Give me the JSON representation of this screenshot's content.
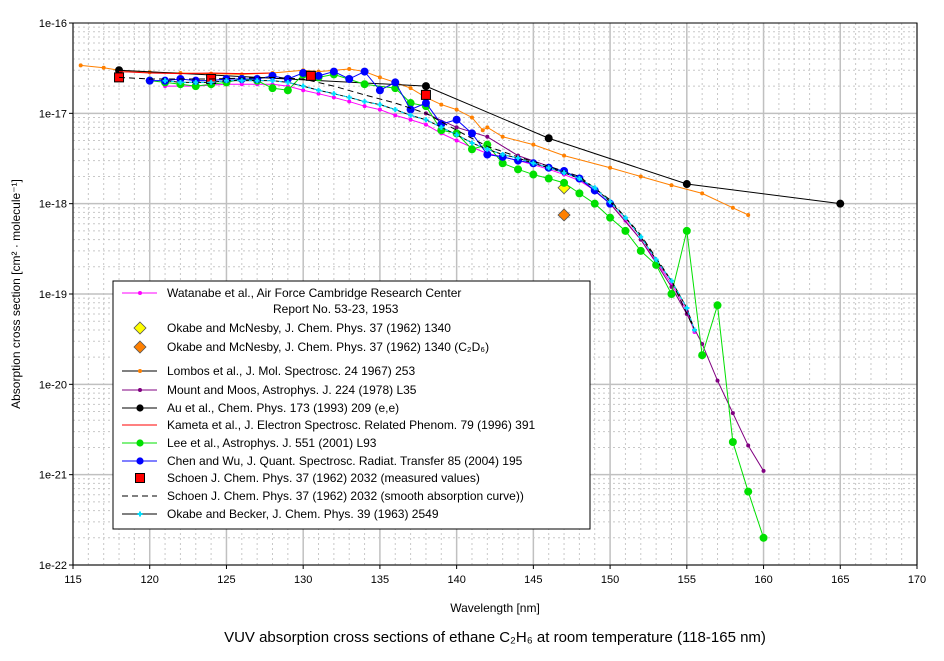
{
  "chart_data": {
    "type": "line",
    "title": "VUV absorption cross sections of ethane C₂H₆ at room temperature (118-165 nm)",
    "xlabel": "Wavelength [nm]",
    "ylabel": "Absorption cross section [cm² · molecule⁻¹]",
    "xlim": [
      115,
      170
    ],
    "ylim": [
      1e-22,
      1e-16
    ],
    "yscale": "log",
    "grid": true,
    "legend_placement": "lower-left",
    "x_ticks": [
      "115",
      "120",
      "125",
      "130",
      "135",
      "140",
      "145",
      "150",
      "155",
      "160",
      "165",
      "170"
    ],
    "y_ticks": [
      "1e-22",
      "1e-21",
      "1e-20",
      "1e-19",
      "1e-18",
      "1e-17",
      "1e-16"
    ],
    "series": [
      {
        "name": "Watanabe et al., Air Force Cambridge Research Center",
        "name2": "Report No. 53-23, 1953",
        "color": "#ff00ff",
        "marker": "dot",
        "line": "solid",
        "x": [
          121,
          122,
          123,
          124,
          125,
          126,
          127,
          128,
          129,
          130,
          131,
          132,
          133,
          134,
          135,
          136,
          137,
          138,
          139,
          140,
          141,
          142,
          143,
          144,
          145,
          146,
          147,
          148,
          149,
          150,
          151,
          152,
          153,
          154,
          155,
          155.5
        ],
        "y": [
          2e-17,
          2e-17,
          2e-17,
          2.05e-17,
          2.1e-17,
          2.1e-17,
          2.1e-17,
          2.1e-17,
          2e-17,
          1.8e-17,
          1.65e-17,
          1.5e-17,
          1.35e-17,
          1.2e-17,
          1.1e-17,
          9.5e-18,
          8.5e-18,
          7.5e-18,
          6e-18,
          5e-18,
          4.2e-18,
          3.6e-18,
          3.3e-18,
          3e-18,
          2.7e-18,
          2.4e-18,
          2.1e-18,
          1.8e-18,
          1.4e-18,
          1e-18,
          6.5e-19,
          4e-19,
          2.3e-19,
          1.3e-19,
          6.5e-20,
          3.8e-20
        ]
      },
      {
        "name": "Okabe and McNesby, J. Chem. Phys. 37 (1962) 1340",
        "color": "#ffff00",
        "marker": "diamond",
        "line": "none",
        "x": [
          147
        ],
        "y": [
          1.5e-18
        ]
      },
      {
        "name": "Okabe and McNesby, J. Chem. Phys. 37 (1962) 1340 (C₂D₆)",
        "color": "#ff8000",
        "marker": "diamond",
        "line": "none",
        "x": [
          147
        ],
        "y": [
          7.5e-19
        ]
      },
      {
        "name": "Lombos et al., J. Mol. Spectrosc. 24 1967) 253",
        "color": "#ff8000",
        "marker": "dot",
        "line": "solid",
        "x": [
          115.5,
          117,
          118,
          120,
          122,
          124,
          126,
          128,
          130,
          131,
          133,
          134,
          135,
          136,
          137,
          138,
          139,
          140,
          141,
          141.7,
          142,
          143,
          145,
          147,
          150,
          152,
          154,
          156,
          158,
          159
        ],
        "y": [
          3.4e-17,
          3.2e-17,
          3e-17,
          2.85e-17,
          2.8e-17,
          2.75e-17,
          2.7e-17,
          2.8e-17,
          3e-17,
          2.9e-17,
          3.1e-17,
          2.9e-17,
          2.5e-17,
          2.2e-17,
          1.9e-17,
          1.5e-17,
          1.25e-17,
          1.1e-17,
          9e-18,
          6.5e-18,
          7e-18,
          5.5e-18,
          4.5e-18,
          3.4e-18,
          2.5e-18,
          2e-18,
          1.6e-18,
          1.3e-18,
          9e-19,
          7.5e-19
        ]
      },
      {
        "name": "Mount and Moos, Astrophys. J. 224 (1978) L35",
        "color": "#800080",
        "marker": "dot",
        "line": "solid",
        "x": [
          138,
          140,
          142,
          144,
          146,
          148,
          150,
          152,
          153,
          154,
          155,
          156,
          157,
          158,
          159,
          160
        ],
        "y": [
          1e-17,
          7e-18,
          5.5e-18,
          3.4e-18,
          2.6e-18,
          1.9e-18,
          1e-18,
          4e-19,
          2.2e-19,
          1.2e-19,
          6e-20,
          2.8e-20,
          1.1e-20,
          4.8e-21,
          2.1e-21,
          1.1e-21
        ]
      },
      {
        "name": "Au et al., Chem. Phys. 173 (1993) 209 (e,e)",
        "color": "#000000",
        "marker": "circle",
        "line": "solid",
        "x": [
          118,
          138,
          146,
          155,
          165
        ],
        "y": [
          3e-17,
          2e-17,
          5.3e-18,
          1.65e-18,
          1e-18
        ]
      },
      {
        "name": "Kameta et al., J. Electron Spectrosc. Related Phenom. 79 (1996) 391",
        "color": "#ff0000",
        "marker": "none",
        "line": "solid",
        "x": [
          118,
          120,
          122,
          124,
          126,
          128
        ],
        "y": [
          2.9e-17,
          2.8e-17,
          2.75e-17,
          2.8e-17,
          2.75e-17,
          2.8e-17
        ]
      },
      {
        "name": "Lee et al., Astrophys. J. 551 (2001) L93",
        "color": "#00e000",
        "marker": "circle",
        "line": "solid",
        "x": [
          120,
          121,
          122,
          123,
          124,
          125,
          126,
          127,
          128,
          129,
          130,
          131,
          132,
          134,
          136,
          137,
          138,
          139,
          140,
          141,
          142,
          143,
          144,
          145,
          146,
          147,
          148,
          149,
          150,
          151,
          152,
          153,
          154,
          155,
          156,
          157,
          158,
          159,
          160
        ],
        "y": [
          2.3e-17,
          2.2e-17,
          2.1e-17,
          2e-17,
          2.1e-17,
          2.2e-17,
          2.4e-17,
          2.3e-17,
          1.9e-17,
          1.8e-17,
          2.7e-17,
          2.5e-17,
          2.7e-17,
          2.1e-17,
          1.9e-17,
          1.3e-17,
          1.2e-17,
          6.5e-18,
          6e-18,
          4e-18,
          4.5e-18,
          2.8e-18,
          2.4e-18,
          2.1e-18,
          1.9e-18,
          1.7e-18,
          1.3e-18,
          1e-18,
          7e-19,
          5e-19,
          3e-19,
          2.1e-19,
          1e-19,
          5e-19,
          2.1e-20,
          7.5e-20,
          2.3e-21,
          6.5e-22,
          2e-22
        ]
      },
      {
        "name": "Chen and Wu, J. Quant. Spectrosc. Radiat. Transfer 85 (2004) 195",
        "color": "#0000ff",
        "marker": "circle",
        "line": "solid",
        "x": [
          120,
          121,
          122,
          123,
          124,
          125,
          126,
          127,
          128,
          129,
          130,
          131,
          132,
          133,
          134,
          135,
          136,
          137,
          138,
          139,
          140,
          141,
          142,
          143,
          144,
          145,
          146,
          147,
          148,
          149,
          150
        ],
        "y": [
          2.3e-17,
          2.3e-17,
          2.4e-17,
          2.3e-17,
          2.3e-17,
          2.4e-17,
          2.4e-17,
          2.4e-17,
          2.6e-17,
          2.4e-17,
          2.8e-17,
          2.6e-17,
          2.9e-17,
          2.4e-17,
          2.9e-17,
          1.8e-17,
          2.2e-17,
          1.1e-17,
          1.3e-17,
          7.6e-18,
          8.5e-18,
          6e-18,
          3.5e-18,
          3.3e-18,
          3e-18,
          2.8e-18,
          2.5e-18,
          2.3e-18,
          1.9e-18,
          1.4e-18,
          1e-18
        ]
      },
      {
        "name": "Schoen J. Chem. Phys. 37 (1962) 2032 (measured values)",
        "color": "#ff0000",
        "marker": "square",
        "line": "none",
        "x": [
          118,
          124,
          130.5,
          138
        ],
        "y": [
          2.5e-17,
          2.4e-17,
          2.6e-17,
          1.6e-17
        ]
      },
      {
        "name": "Schoen J. Chem. Phys. 37 (1962) 2032 (smooth absorption curve))",
        "color": "#000000",
        "marker": "none",
        "line": "dashed",
        "x": [
          118,
          120,
          124,
          128,
          130,
          132,
          134,
          136,
          138,
          140,
          142,
          144,
          146,
          148,
          150,
          152,
          154,
          155.5
        ],
        "y": [
          2.5e-17,
          2.4e-17,
          2.4e-17,
          2.5e-17,
          2.4e-17,
          2e-17,
          1.6e-17,
          1.3e-17,
          1e-17,
          6.5e-18,
          4.3e-18,
          3.3e-18,
          2.6e-18,
          2e-18,
          1.1e-18,
          4.5e-19,
          1.4e-19,
          4e-20
        ]
      },
      {
        "name": "Okabe and Becker, J. Chem. Phys. 39 (1963) 2549",
        "color": "#00e0ff",
        "marker": "cross",
        "line": "solid",
        "x": [
          121,
          122,
          123,
          124,
          125,
          126,
          127,
          128,
          129,
          130,
          131,
          132,
          133,
          134,
          135,
          136,
          137,
          138,
          139,
          140,
          141,
          142,
          143,
          144,
          145,
          146,
          147,
          148,
          149,
          150,
          151,
          152,
          153,
          154,
          155,
          155.5
        ],
        "y": [
          2.3e-17,
          2.2e-17,
          2.2e-17,
          2.2e-17,
          2.3e-17,
          2.3e-17,
          2.3e-17,
          2.3e-17,
          2.2e-17,
          2e-17,
          1.8e-17,
          1.65e-17,
          1.5e-17,
          1.35e-17,
          1.25e-17,
          1.1e-17,
          9.5e-18,
          8.5e-18,
          7e-18,
          5.8e-18,
          4.7e-18,
          4e-18,
          3.5e-18,
          3.2e-18,
          2.8e-18,
          2.5e-18,
          2.2e-18,
          1.9e-18,
          1.5e-18,
          1.05e-18,
          7e-19,
          4.3e-19,
          2.4e-19,
          1.4e-19,
          7e-20,
          4e-20
        ]
      }
    ]
  }
}
